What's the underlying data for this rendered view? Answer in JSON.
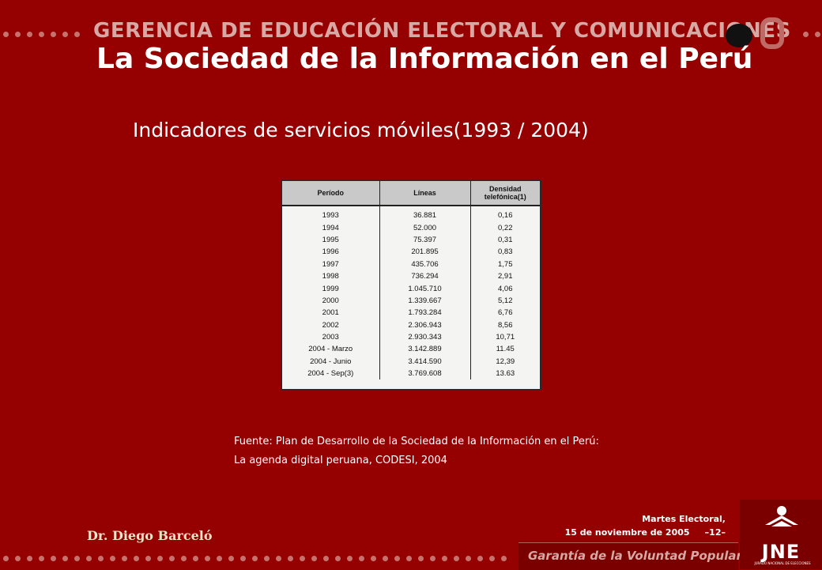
{
  "header": {
    "banner": "GERENCIA DE EDUCACIÓN ELECTORAL Y COMUNICACIONES",
    "title": "La Sociedad de la Información en el Perú"
  },
  "subtitle": "Indicadores de servicios móviles(1993  / 2004)",
  "table": {
    "columns": [
      "Período",
      "Líneas",
      "Densidad telefónica(1)"
    ],
    "rows": [
      [
        "1993",
        "36.881",
        "0,16"
      ],
      [
        "1994",
        "52.000",
        "0,22"
      ],
      [
        "1995",
        "75.397",
        "0,31"
      ],
      [
        "1996",
        "201.895",
        "0,83"
      ],
      [
        "1997",
        "435.706",
        "1,75"
      ],
      [
        "1998",
        "736.294",
        "2,91"
      ],
      [
        "1999",
        "1.045.710",
        "4,06"
      ],
      [
        "2000",
        "1.339.667",
        "5,12"
      ],
      [
        "2001",
        "1.793.284",
        "6,76"
      ],
      [
        "2002",
        "2.306.943",
        "8,56"
      ],
      [
        "2003",
        "2.930.343",
        "10,71"
      ],
      [
        "2004 - Marzo",
        "3.142.889",
        "11.45"
      ],
      [
        "2004 - Junio",
        "3.414.590",
        "12,39"
      ],
      [
        "2004 - Sep(3)",
        "3.769.608",
        "13.63"
      ]
    ]
  },
  "source": {
    "line1": "Fuente: Plan de Desarrollo de la Sociedad de la Información en el Perú:",
    "line2": "La agenda digital peruana, CODESI, 2004"
  },
  "footer": {
    "author": "Dr.  Diego Barceló",
    "date_line1": "Martes Electoral,",
    "date_line2": "15 de noviembre de 2005     –12–",
    "slogan": "Garantía de la Voluntad Popular",
    "logo_text": "JNE",
    "logo_subtext": "JURADO NACIONAL DE ELECCIONES"
  },
  "colors": {
    "background": "#950000",
    "text": "#ffffff",
    "banner_text": "#d8a8a4"
  }
}
